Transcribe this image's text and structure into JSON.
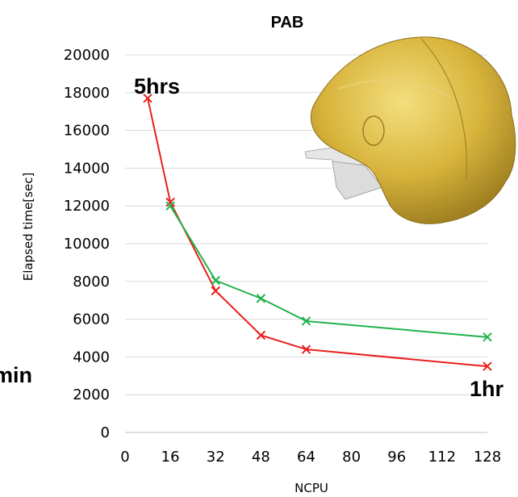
{
  "chart_data": {
    "type": "line",
    "title": "PAB",
    "xlabel": "NCPU",
    "ylabel": "Elapsed time[sec]",
    "x_ticks": [
      0,
      16,
      32,
      48,
      64,
      80,
      96,
      112,
      128
    ],
    "y_ticks": [
      0,
      2000,
      4000,
      6000,
      8000,
      10000,
      12000,
      14000,
      16000,
      18000,
      20000
    ],
    "xlim": [
      0,
      128
    ],
    "ylim": [
      0,
      20000
    ],
    "grid": "horizontal",
    "series": [
      {
        "color": "#e8201f",
        "marker": "x",
        "points": [
          {
            "x": 8,
            "y": 17700
          },
          {
            "x": 16,
            "y": 12200
          },
          {
            "x": 32,
            "y": 7500
          },
          {
            "x": 48,
            "y": 5150
          },
          {
            "x": 64,
            "y": 4400
          },
          {
            "x": 128,
            "y": 3500
          }
        ]
      },
      {
        "color": "#22b24c",
        "marker": "x",
        "points": [
          {
            "x": 16,
            "y": 12000
          },
          {
            "x": 32,
            "y": 8050
          },
          {
            "x": 48,
            "y": 7100
          },
          {
            "x": 64,
            "y": 5900
          },
          {
            "x": 128,
            "y": 5050
          }
        ]
      }
    ],
    "annotations": {
      "top_left": "5hrs",
      "left_edge": "min",
      "bottom_right": "1hr"
    },
    "illustration": "airbag-render"
  }
}
